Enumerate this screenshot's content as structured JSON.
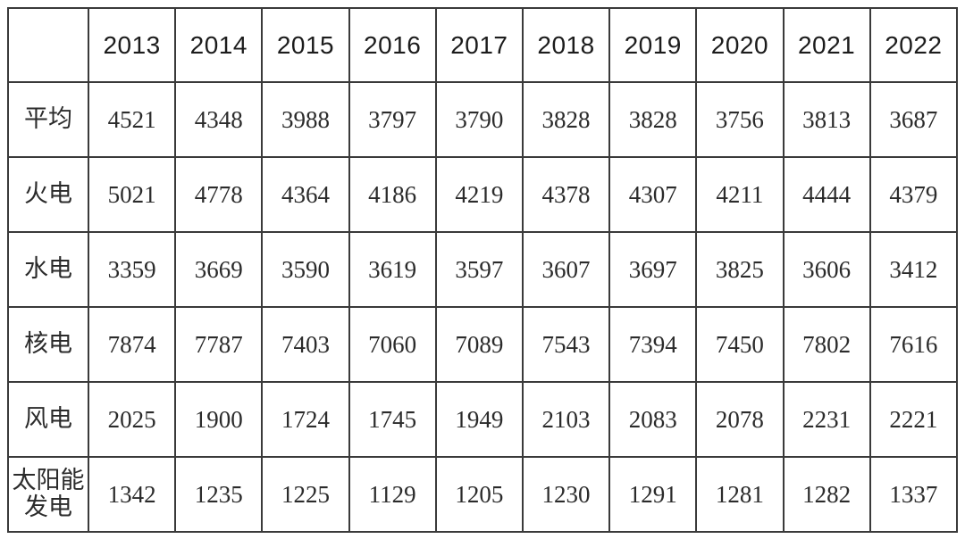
{
  "page": {
    "background": "#ffffff",
    "border_color": "#3a3a3a",
    "text_color": "#2b2b2b"
  },
  "table": {
    "corner_label": "",
    "columns": [
      "2013",
      "2014",
      "2015",
      "2016",
      "2017",
      "2018",
      "2019",
      "2020",
      "2021",
      "2022"
    ],
    "rows": [
      {
        "label": "平均",
        "values": [
          "4521",
          "4348",
          "3988",
          "3797",
          "3790",
          "3828",
          "3828",
          "3756",
          "3813",
          "3687"
        ]
      },
      {
        "label": "火电",
        "values": [
          "5021",
          "4778",
          "4364",
          "4186",
          "4219",
          "4378",
          "4307",
          "4211",
          "4444",
          "4379"
        ]
      },
      {
        "label": "水电",
        "values": [
          "3359",
          "3669",
          "3590",
          "3619",
          "3597",
          "3607",
          "3697",
          "3825",
          "3606",
          "3412"
        ]
      },
      {
        "label": "核电",
        "values": [
          "7874",
          "7787",
          "7403",
          "7060",
          "7089",
          "7543",
          "7394",
          "7450",
          "7802",
          "7616"
        ]
      },
      {
        "label": "风电",
        "values": [
          "2025",
          "1900",
          "1724",
          "1745",
          "1949",
          "2103",
          "2083",
          "2078",
          "2231",
          "2221"
        ]
      },
      {
        "label": "太阳能发电",
        "values": [
          "1342",
          "1235",
          "1225",
          "1129",
          "1205",
          "1230",
          "1291",
          "1281",
          "1282",
          "1337"
        ]
      }
    ]
  },
  "chart_data": {
    "type": "table",
    "title": "",
    "categories": [
      "2013",
      "2014",
      "2015",
      "2016",
      "2017",
      "2018",
      "2019",
      "2020",
      "2021",
      "2022"
    ],
    "series": [
      {
        "name": "平均",
        "values": [
          4521,
          4348,
          3988,
          3797,
          3790,
          3828,
          3828,
          3756,
          3813,
          3687
        ]
      },
      {
        "name": "火电",
        "values": [
          5021,
          4778,
          4364,
          4186,
          4219,
          4378,
          4307,
          4211,
          4444,
          4379
        ]
      },
      {
        "name": "水电",
        "values": [
          3359,
          3669,
          3590,
          3619,
          3597,
          3607,
          3697,
          3825,
          3606,
          3412
        ]
      },
      {
        "name": "核电",
        "values": [
          7874,
          7787,
          7403,
          7060,
          7089,
          7543,
          7394,
          7450,
          7802,
          7616
        ]
      },
      {
        "name": "风电",
        "values": [
          2025,
          1900,
          1724,
          1745,
          1949,
          2103,
          2083,
          2078,
          2231,
          2221
        ]
      },
      {
        "name": "太阳能发电",
        "values": [
          1342,
          1235,
          1225,
          1129,
          1205,
          1230,
          1291,
          1281,
          1282,
          1337
        ]
      }
    ],
    "layout": {
      "grid": true,
      "legend_position": "none"
    }
  }
}
